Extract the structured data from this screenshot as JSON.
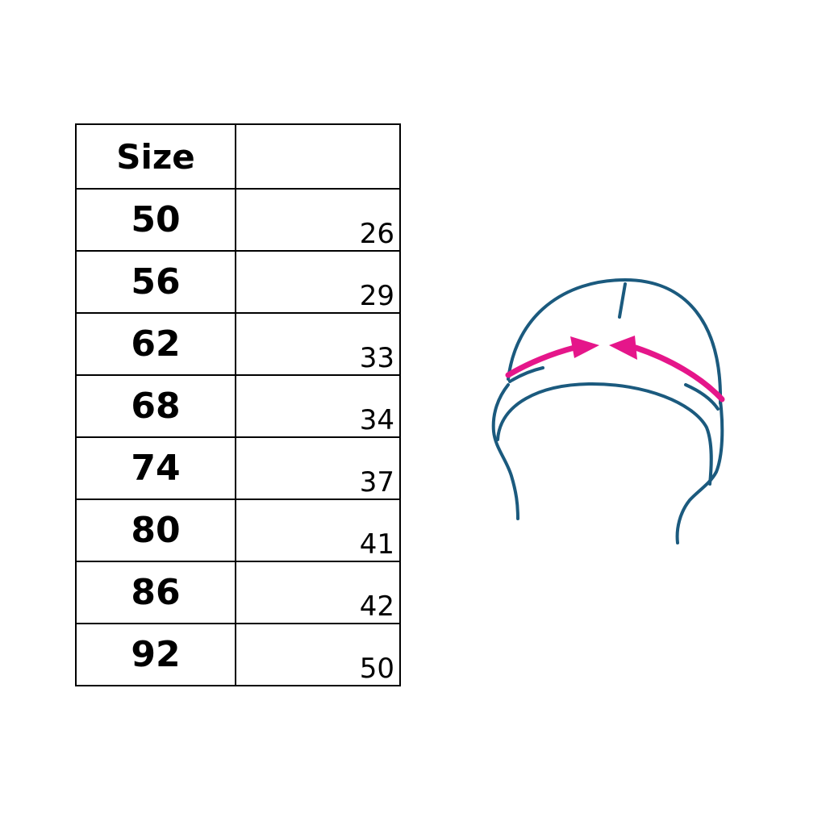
{
  "size_table": {
    "headers": [
      "Size",
      ""
    ],
    "rows": [
      {
        "size": "50",
        "value": "26"
      },
      {
        "size": "56",
        "value": "29"
      },
      {
        "size": "62",
        "value": "33"
      },
      {
        "size": "68",
        "value": "34"
      },
      {
        "size": "74",
        "value": "37"
      },
      {
        "size": "80",
        "value": "41"
      },
      {
        "size": "86",
        "value": "42"
      },
      {
        "size": "92",
        "value": "50"
      }
    ]
  },
  "illustration": {
    "subject": "hat-head-circumference",
    "colors": {
      "outline": "#1b5a7e",
      "arrow": "#e5168a"
    }
  }
}
